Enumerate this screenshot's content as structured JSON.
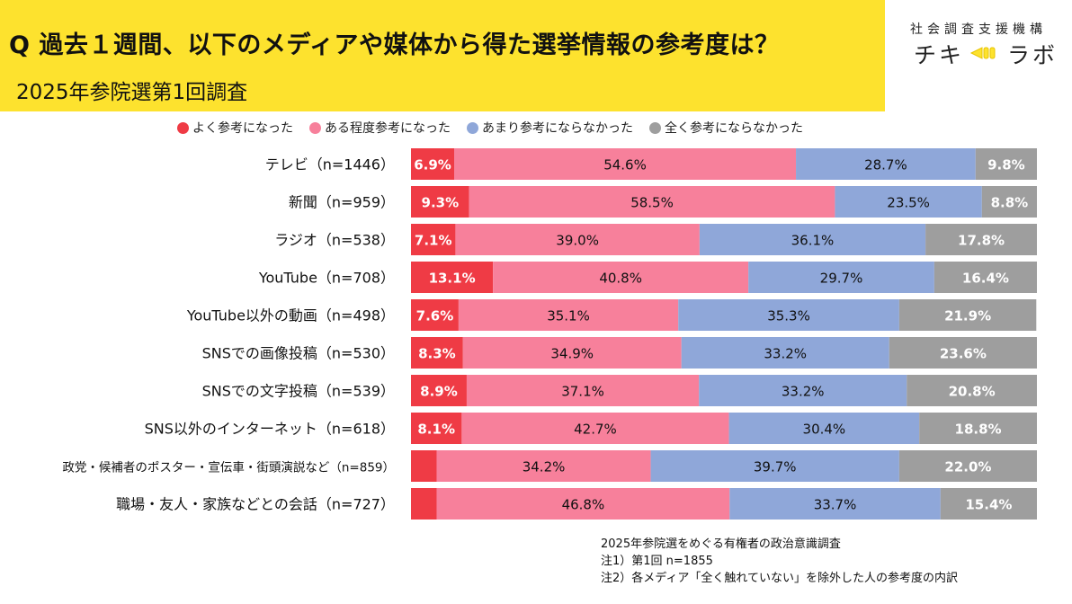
{
  "header": {
    "title": "Q 過去１週間、以下のメディアや媒体から得た選挙情報の参考度は？",
    "subtitle": "2025年参院選第1回調査"
  },
  "brand": {
    "org": "社会調査支援機構",
    "name_left": "チキ",
    "name_right": "ラボ",
    "logo_icon": "megaphone-icon"
  },
  "notes": {
    "line1": "2025年参院選をめぐる有権者の政治意識調査",
    "line2": "注1）第1回 n=1855",
    "line3": "注2）各メディア「全く触れていない」を除外した人の参考度の内訳"
  },
  "chart_data": {
    "type": "bar",
    "orientation": "horizontal",
    "stacked": true,
    "percent_stacked": true,
    "xlim": [
      0,
      100
    ],
    "legend_position": "top",
    "grid": false,
    "categories": [
      "テレビ（n=1446）",
      "新聞（n=959）",
      "ラジオ（n=538）",
      "YouTube（n=708）",
      "YouTube以外の動画（n=498）",
      "SNSでの画像投稿（n=530）",
      "SNSでの文字投稿（n=539）",
      "SNS以外のインターネット（n=618）",
      "政党・候補者のポスター・宣伝車・街頭演説など（n=859）",
      "職場・友人・家族などとの会話（n=727）"
    ],
    "series": [
      {
        "name": "よく参考になった",
        "color": "#ef3b45",
        "values": [
          6.9,
          9.3,
          7.1,
          13.1,
          7.6,
          8.3,
          8.9,
          8.1,
          4.1,
          4.1
        ],
        "labels": [
          "6.9%",
          "9.3%",
          "7.1%",
          "13.1%",
          "7.6%",
          "8.3%",
          "8.9%",
          "8.1%",
          "",
          ""
        ]
      },
      {
        "name": "ある程度参考になった",
        "color": "#f7809b",
        "values": [
          54.6,
          58.5,
          39.0,
          40.8,
          35.1,
          34.9,
          37.1,
          42.7,
          34.2,
          46.8
        ],
        "labels": [
          "54.6%",
          "58.5%",
          "39.0%",
          "40.8%",
          "35.1%",
          "34.9%",
          "37.1%",
          "42.7%",
          "34.2%",
          "46.8%"
        ]
      },
      {
        "name": "あまり参考にならなかった",
        "color": "#8fa7d9",
        "values": [
          28.7,
          23.5,
          36.1,
          29.7,
          35.3,
          33.2,
          33.2,
          30.4,
          39.7,
          33.7
        ],
        "labels": [
          "28.7%",
          "23.5%",
          "36.1%",
          "29.7%",
          "35.3%",
          "33.2%",
          "33.2%",
          "30.4%",
          "39.7%",
          "33.7%"
        ]
      },
      {
        "name": "全く参考にならなかった",
        "color": "#9e9e9e",
        "values": [
          9.8,
          8.8,
          17.8,
          16.4,
          21.9,
          23.6,
          20.8,
          18.8,
          22.0,
          15.4
        ],
        "labels": [
          "9.8%",
          "8.8%",
          "17.8%",
          "16.4%",
          "21.9%",
          "23.6%",
          "20.8%",
          "18.8%",
          "22.0%",
          "15.4%"
        ]
      }
    ]
  }
}
